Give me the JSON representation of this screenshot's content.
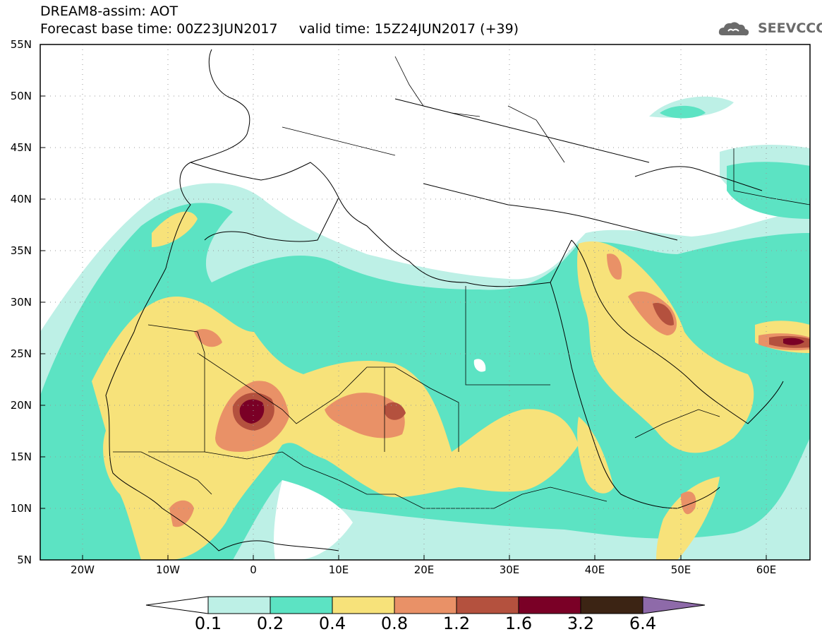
{
  "header": {
    "line1": "DREAM8-assim: AOT",
    "line2": "Forecast base time: 00Z23JUN2017     valid time: 15Z24JUN2017 (+39)"
  },
  "logo": {
    "text": "SEEVCCC",
    "icon": "cloud-icon"
  },
  "map": {
    "lon_range": [
      -25,
      65
    ],
    "lat_range": [
      5,
      55
    ],
    "lon_ticks": [
      "20W",
      "10W",
      "0",
      "10E",
      "20E",
      "30E",
      "40E",
      "50E",
      "60E"
    ],
    "lat_ticks": [
      "5N",
      "10N",
      "15N",
      "20N",
      "25N",
      "30N",
      "35N",
      "40N",
      "45N",
      "50N",
      "55N"
    ]
  },
  "colorbar": {
    "levels": [
      "0.1",
      "0.2",
      "0.4",
      "0.8",
      "1.2",
      "1.6",
      "3.2",
      "6.4"
    ],
    "colors": [
      "#ffffff",
      "#bdf0e6",
      "#5ce3c3",
      "#f7e27a",
      "#e99167",
      "#b4513e",
      "#7a0026",
      "#3c2414",
      "#8e6aa9"
    ]
  }
}
